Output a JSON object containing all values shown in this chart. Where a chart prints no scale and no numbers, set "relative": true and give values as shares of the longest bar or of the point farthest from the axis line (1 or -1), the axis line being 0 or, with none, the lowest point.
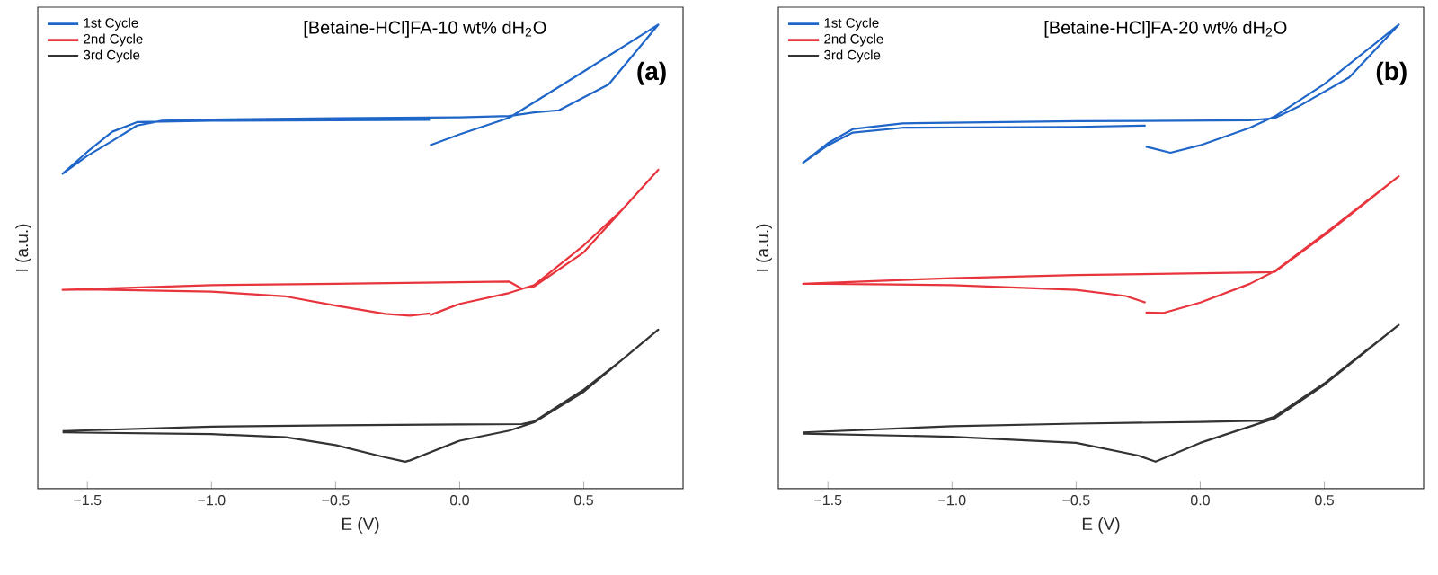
{
  "chart_data": [
    {
      "type": "line",
      "title": "[Betaine-HCl]FA-10 wt% dH$_{2}$O",
      "xlabel": "E (V)",
      "ylabel": "I (a.u.)",
      "annotations": [
        "(a)"
      ],
      "relative": true,
      "legend": "top left",
      "xlim": [
        -1.7,
        0.9
      ],
      "xticks": [
        {
          "value": -1.5,
          "label": "−1.5"
        },
        {
          "value": -1.0,
          "label": "−1.0"
        },
        {
          "value": -0.5,
          "label": "−0.5"
        },
        {
          "value": 0.0,
          "label": "0.0"
        },
        {
          "value": 0.5,
          "label": "0.5"
        }
      ],
      "series": [
        {
          "name": "1st Cycle",
          "color": "#1f66c8",
          "x": [
            -0.12,
            0.0,
            0.2,
            0.5,
            0.8,
            0.6,
            0.4,
            0.3,
            0.2,
            0.0,
            -0.5,
            -1.0,
            -1.2,
            -1.3,
            -1.4,
            -1.5,
            -1.6,
            -1.5,
            -1.4,
            -1.3,
            -1.0,
            -0.5,
            -0.12
          ],
          "values": [
            0.724,
            0.749,
            0.787,
            0.893,
            1.0,
            0.863,
            0.804,
            0.799,
            0.791,
            0.788,
            0.786,
            0.783,
            0.78,
            0.769,
            0.734,
            0.7,
            0.659,
            0.709,
            0.755,
            0.777,
            0.78,
            0.781,
            0.782
          ]
        },
        {
          "name": "2nd Cycle",
          "color": "#e8343c",
          "x": [
            -0.12,
            0.0,
            0.2,
            0.3,
            0.5,
            0.65,
            0.8,
            0.5,
            0.3,
            0.25,
            0.2,
            -0.5,
            -1.0,
            -1.6,
            -1.5,
            -1.0,
            -0.7,
            -0.5,
            -0.3,
            -0.2,
            -0.12
          ],
          "values": [
            0.335,
            0.361,
            0.386,
            0.404,
            0.495,
            0.574,
            0.668,
            0.479,
            0.401,
            0.396,
            0.412,
            0.407,
            0.404,
            0.393,
            0.394,
            0.389,
            0.378,
            0.357,
            0.338,
            0.334,
            0.339
          ]
        },
        {
          "name": "3rd Cycle",
          "color": "#333333",
          "x": [
            -1.6,
            -1.0,
            -0.5,
            0.0,
            0.25,
            0.3,
            0.45,
            0.5,
            0.65,
            0.8,
            0.5,
            0.3,
            0.2,
            0.0,
            -0.2,
            -0.22,
            -0.3,
            -0.5,
            -0.7,
            -1.0,
            -1.6
          ],
          "values": [
            0.07,
            0.08,
            0.083,
            0.0852,
            0.086,
            0.092,
            0.147,
            0.165,
            0.231,
            0.302,
            0.16,
            0.09,
            0.071,
            0.048,
            0.003,
            0.0,
            0.01,
            0.038,
            0.056,
            0.063,
            0.067
          ]
        }
      ]
    },
    {
      "type": "line",
      "title": "[Betaine-HCl]FA-20 wt% dH$_{2}$O",
      "xlabel": "E (V)",
      "ylabel": "I (a.u.)",
      "annotations": [
        "(b)"
      ],
      "relative": true,
      "legend": "top left",
      "xlim": [
        -1.7,
        0.9
      ],
      "xticks": [
        {
          "value": -1.5,
          "label": "−1.5"
        },
        {
          "value": -1.0,
          "label": "−1.0"
        },
        {
          "value": -0.5,
          "label": "−0.5"
        },
        {
          "value": 0.0,
          "label": "0.0"
        },
        {
          "value": 0.5,
          "label": "0.5"
        }
      ],
      "series": [
        {
          "name": "1st Cycle",
          "color": "#1f66c8",
          "x": [
            -0.22,
            -0.12,
            0.0,
            0.2,
            0.3,
            0.5,
            0.8,
            0.6,
            0.4,
            0.3,
            0.2,
            -0.5,
            -1.2,
            -1.4,
            -1.5,
            -1.6,
            -1.5,
            -1.4,
            -1.2,
            -0.5,
            -0.22
          ],
          "values": [
            0.721,
            0.707,
            0.724,
            0.764,
            0.79,
            0.864,
            1.0,
            0.879,
            0.814,
            0.786,
            0.781,
            0.779,
            0.774,
            0.761,
            0.729,
            0.684,
            0.724,
            0.753,
            0.764,
            0.766,
            0.769
          ]
        },
        {
          "name": "2nd Cycle",
          "color": "#e8343c",
          "x": [
            -0.22,
            -0.15,
            0.0,
            0.2,
            0.3,
            0.5,
            0.8,
            0.5,
            0.3,
            0.25,
            -0.5,
            -1.0,
            -1.6,
            -1.5,
            -1.0,
            -0.5,
            -0.3,
            -0.22
          ],
          "values": [
            0.341,
            0.34,
            0.364,
            0.407,
            0.436,
            0.521,
            0.653,
            0.518,
            0.434,
            0.433,
            0.427,
            0.42,
            0.407,
            0.407,
            0.404,
            0.393,
            0.379,
            0.364
          ]
        },
        {
          "name": "3rd Cycle",
          "color": "#333333",
          "x": [
            -1.6,
            -1.0,
            -0.5,
            0.0,
            0.25,
            0.3,
            0.5,
            0.8,
            0.5,
            0.3,
            0.0,
            -0.18,
            -0.25,
            -0.5,
            -1.0,
            -1.6
          ],
          "values": [
            0.067,
            0.081,
            0.087,
            0.091,
            0.094,
            0.103,
            0.179,
            0.313,
            0.176,
            0.099,
            0.043,
            0.0,
            0.014,
            0.043,
            0.057,
            0.064
          ]
        }
      ]
    }
  ]
}
